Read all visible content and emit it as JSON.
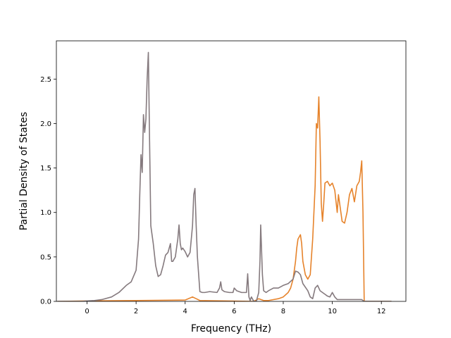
{
  "chart_data": {
    "type": "line",
    "xlabel": "Frequency (THz)",
    "ylabel": "Partial Density of States",
    "xlim": [
      -1.25,
      13.0
    ],
    "ylim": [
      0.0,
      2.93
    ],
    "xticks": [
      0,
      2,
      4,
      6,
      8,
      10,
      12
    ],
    "yticks": [
      0.0,
      0.5,
      1.0,
      1.5,
      2.0,
      2.5
    ],
    "xtick_labels": [
      "0",
      "2",
      "4",
      "6",
      "8",
      "10",
      "12"
    ],
    "ytick_labels": [
      "0.0",
      "0.5",
      "1.0",
      "1.5",
      "2.0",
      "2.5"
    ],
    "grid": false,
    "series": [
      {
        "color": "#e6832b",
        "x": [
          -1.2,
          0.0,
          2.0,
          4.0,
          4.3,
          4.45,
          4.6,
          6.8,
          7.0,
          7.2,
          7.4,
          7.8,
          8.0,
          8.2,
          8.3,
          8.4,
          8.5,
          8.55,
          8.6,
          8.7,
          8.75,
          8.8,
          8.9,
          9.0,
          9.1,
          9.2,
          9.3,
          9.35,
          9.4,
          9.45,
          9.5,
          9.55,
          9.6,
          9.65,
          9.7,
          9.8,
          9.9,
          10.0,
          10.1,
          10.2,
          10.25,
          10.3,
          10.35,
          10.4,
          10.5,
          10.6,
          10.7,
          10.8,
          10.9,
          11.0,
          11.1,
          11.15,
          11.2,
          11.25,
          11.3,
          11.5,
          12.4
        ],
        "y": [
          0.0,
          0.005,
          0.01,
          0.015,
          0.05,
          0.03,
          0.01,
          0.0,
          0.03,
          0.01,
          0.01,
          0.03,
          0.05,
          0.1,
          0.15,
          0.25,
          0.45,
          0.6,
          0.7,
          0.75,
          0.65,
          0.45,
          0.3,
          0.25,
          0.3,
          0.7,
          1.3,
          2.0,
          1.95,
          2.3,
          1.8,
          1.1,
          0.9,
          1.1,
          1.33,
          1.35,
          1.3,
          1.33,
          1.25,
          1.0,
          1.2,
          1.1,
          1.0,
          0.9,
          0.88,
          1.0,
          1.2,
          1.27,
          1.12,
          1.3,
          1.35,
          1.45,
          1.58,
          1.0,
          0.0,
          0.0,
          0.0
        ]
      },
      {
        "color": "#857a7e",
        "x": [
          -1.2,
          -0.2,
          0.0,
          0.3,
          0.6,
          1.0,
          1.3,
          1.6,
          1.8,
          2.0,
          2.1,
          2.15,
          2.2,
          2.25,
          2.3,
          2.35,
          2.4,
          2.45,
          2.5,
          2.52,
          2.55,
          2.6,
          2.65,
          2.7,
          2.8,
          2.9,
          3.0,
          3.1,
          3.2,
          3.3,
          3.4,
          3.45,
          3.5,
          3.6,
          3.7,
          3.75,
          3.8,
          3.85,
          3.9,
          4.0,
          4.1,
          4.2,
          4.3,
          4.35,
          4.4,
          4.45,
          4.5,
          4.6,
          4.7,
          4.8,
          5.0,
          5.3,
          5.4,
          5.45,
          5.5,
          5.6,
          5.8,
          5.95,
          6.0,
          6.1,
          6.3,
          6.5,
          6.55,
          6.6,
          6.65,
          6.7,
          6.8,
          6.9,
          7.0,
          7.05,
          7.08,
          7.1,
          7.15,
          7.2,
          7.3,
          7.4,
          7.6,
          7.8,
          8.0,
          8.2,
          8.4,
          8.5,
          8.6,
          8.7,
          8.8,
          9.0,
          9.1,
          9.2,
          9.3,
          9.4,
          9.5,
          9.6,
          9.7,
          9.8,
          9.9,
          10.0,
          10.1,
          10.2,
          10.5,
          11.0,
          11.2,
          11.3,
          12.4
        ],
        "y": [
          0.0,
          0.0,
          0.005,
          0.01,
          0.02,
          0.05,
          0.1,
          0.18,
          0.22,
          0.35,
          0.7,
          1.2,
          1.65,
          1.45,
          2.1,
          1.9,
          2.05,
          2.5,
          2.8,
          2.4,
          1.8,
          0.85,
          0.75,
          0.65,
          0.4,
          0.28,
          0.3,
          0.4,
          0.52,
          0.55,
          0.65,
          0.45,
          0.45,
          0.5,
          0.7,
          0.86,
          0.65,
          0.58,
          0.6,
          0.56,
          0.5,
          0.55,
          0.85,
          1.2,
          1.27,
          0.85,
          0.5,
          0.11,
          0.1,
          0.1,
          0.11,
          0.1,
          0.15,
          0.22,
          0.13,
          0.11,
          0.1,
          0.1,
          0.15,
          0.12,
          0.1,
          0.1,
          0.31,
          0.05,
          0.01,
          0.05,
          0.0,
          0.0,
          0.1,
          0.45,
          0.86,
          0.7,
          0.3,
          0.12,
          0.1,
          0.12,
          0.15,
          0.15,
          0.18,
          0.2,
          0.25,
          0.34,
          0.33,
          0.3,
          0.2,
          0.12,
          0.05,
          0.03,
          0.15,
          0.18,
          0.12,
          0.1,
          0.08,
          0.06,
          0.05,
          0.1,
          0.05,
          0.02,
          0.02,
          0.02,
          0.02,
          0.0,
          0.0
        ]
      }
    ]
  }
}
